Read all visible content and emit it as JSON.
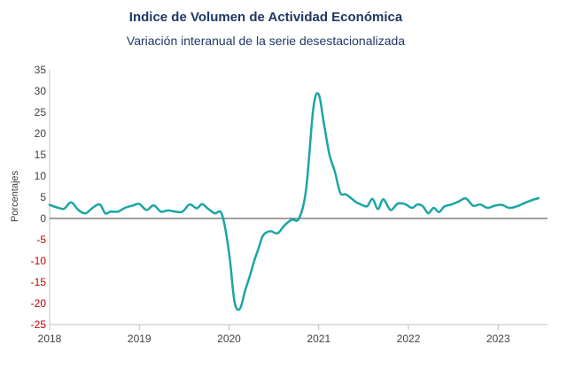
{
  "chart_data": {
    "type": "line",
    "title": "Indice de Volumen de  Actividad Económica",
    "subtitle": "Variación interanual de la serie desestacionalizada",
    "ylabel": "Porcentajes",
    "xlabel": "",
    "ylim": [
      -25,
      35
    ],
    "yticks": [
      35,
      30,
      25,
      20,
      15,
      10,
      5,
      0,
      -5,
      -10,
      -15,
      -20,
      -25
    ],
    "xlim": [
      2018.0,
      2023.55
    ],
    "xtick_labels": [
      "2018",
      "2019",
      "2020",
      "2021",
      "2022",
      "2023"
    ],
    "grid": false,
    "zero_line": true,
    "colors": {
      "series": "#1aa5a5",
      "negative_ticks": "#c00000",
      "title": "#1f3864"
    },
    "series": [
      {
        "x": [
          2018.0,
          2018.08,
          2018.16,
          2018.24,
          2018.32,
          2018.4,
          2018.48,
          2018.56,
          2018.62,
          2018.68,
          2018.76,
          2018.84,
          2018.92,
          2019.0,
          2019.08,
          2019.16,
          2019.24,
          2019.32,
          2019.4,
          2019.48,
          2019.56,
          2019.64,
          2019.7,
          2019.76,
          2019.84,
          2019.92,
          2020.0,
          2020.06,
          2020.12,
          2020.18,
          2020.24,
          2020.28,
          2020.33,
          2020.38,
          2020.46,
          2020.54,
          2020.62,
          2020.7,
          2020.78,
          2020.86,
          2020.94,
          2021.0,
          2021.06,
          2021.12,
          2021.18,
          2021.24,
          2021.3,
          2021.36,
          2021.42,
          2021.48,
          2021.54,
          2021.6,
          2021.66,
          2021.72,
          2021.8,
          2021.88,
          2021.96,
          2022.04,
          2022.1,
          2022.16,
          2022.22,
          2022.28,
          2022.34,
          2022.4,
          2022.48,
          2022.56,
          2022.64,
          2022.72,
          2022.8,
          2022.88,
          2022.96,
          2023.04,
          2023.12,
          2023.2,
          2023.28,
          2023.36,
          2023.45
        ],
        "y": [
          3.2,
          2.6,
          2.3,
          3.8,
          2.0,
          1.2,
          2.5,
          3.3,
          1.2,
          1.6,
          1.6,
          2.5,
          3.0,
          3.4,
          2.0,
          3.1,
          1.6,
          1.9,
          1.6,
          1.6,
          3.3,
          2.4,
          3.4,
          2.4,
          1.2,
          1.0,
          -8.0,
          -19.5,
          -21.3,
          -17.0,
          -13.0,
          -10.0,
          -7.0,
          -4.0,
          -3.0,
          -3.5,
          -1.6,
          -0.3,
          0.0,
          7.0,
          26.0,
          29.2,
          22.0,
          15.0,
          11.0,
          6.0,
          5.7,
          4.8,
          3.8,
          3.2,
          2.9,
          4.6,
          2.2,
          4.5,
          2.0,
          3.5,
          3.4,
          2.5,
          3.3,
          2.9,
          1.2,
          2.5,
          1.5,
          2.8,
          3.3,
          4.0,
          4.7,
          3.0,
          3.3,
          2.5,
          3.0,
          3.2,
          2.5,
          2.8,
          3.5,
          4.2,
          4.8
        ]
      }
    ]
  }
}
